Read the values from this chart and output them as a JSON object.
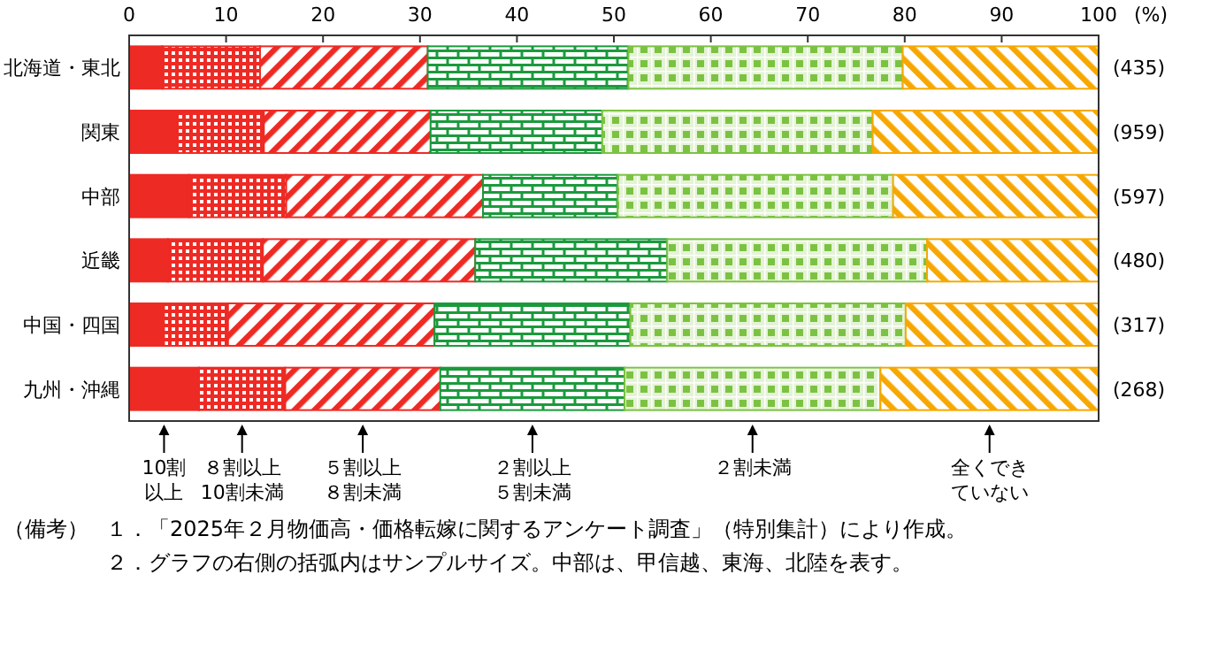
{
  "chart_data": {
    "type": "bar",
    "orientation": "horizontal",
    "stacked": true,
    "categories": [
      "北海道・東北",
      "関東",
      "中部",
      "近畿",
      "中国・四国",
      "九州・沖縄"
    ],
    "series": [
      {
        "name": "10割以上",
        "color": "#ee2a24",
        "values": [
          3.4,
          5.0,
          6.2,
          4.0,
          3.6,
          7.2
        ]
      },
      {
        "name": "８割以上10割未満",
        "color": "#ee2a24",
        "values": [
          10.1,
          8.9,
          10.0,
          9.8,
          6.6,
          8.9
        ]
      },
      {
        "name": "５割以上８割未満",
        "color": "#ee2a24",
        "values": [
          17.3,
          17.2,
          20.3,
          21.9,
          21.3,
          16.0
        ]
      },
      {
        "name": "２割以上５割未満",
        "color": "#1b9a3c",
        "values": [
          20.7,
          17.7,
          13.9,
          19.8,
          20.2,
          19.0
        ]
      },
      {
        "name": "２割未満",
        "color": "#7cc242",
        "values": [
          28.3,
          27.9,
          28.4,
          26.8,
          28.4,
          26.4
        ]
      },
      {
        "name": "全くできていない",
        "color": "#f7a800",
        "values": [
          20.2,
          23.3,
          21.2,
          17.7,
          19.9,
          22.5
        ]
      }
    ],
    "xlim": [
      0,
      100
    ],
    "xticks": [
      0,
      10,
      20,
      30,
      40,
      50,
      60,
      70,
      80,
      90,
      100
    ],
    "xlabel": "(%)",
    "grid": false,
    "annotations": [
      "(435)",
      "(959)",
      "(597)",
      "(480)",
      "(317)",
      "(268)",
      "（備考）",
      "１．「2025年２月物価高・価格転嫁に関するアンケート調査」（特別集計）により作成。",
      "２．グラフの右側の括弧内はサンプルサイズ。中部は、甲信越、東海、北陸を表す。"
    ]
  }
}
